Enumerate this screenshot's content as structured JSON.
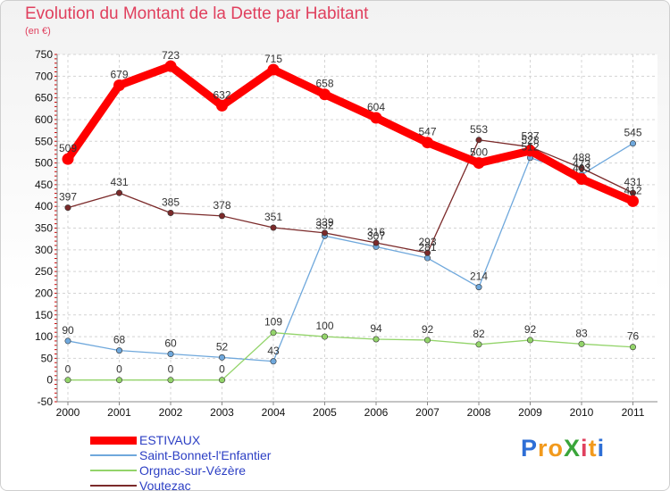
{
  "chart_data": {
    "type": "line",
    "title": "Evolution du Montant de la Dette par Habitant",
    "subtitle": "(en €)",
    "xlabel": "",
    "ylabel": "",
    "x": [
      "2000",
      "2001",
      "2002",
      "2003",
      "2004",
      "2005",
      "2006",
      "2007",
      "2008",
      "2009",
      "2010",
      "2011"
    ],
    "ylim": [
      -50,
      750
    ],
    "yticks": [
      -50,
      0,
      50,
      100,
      150,
      200,
      250,
      300,
      350,
      400,
      450,
      500,
      550,
      600,
      650,
      700,
      750
    ],
    "grid": true,
    "legend_position": "bottom-left",
    "series": [
      {
        "name": "ESTIVAUX",
        "color": "#ff0000",
        "values": [
          509,
          679,
          723,
          632,
          715,
          658,
          604,
          547,
          500,
          528,
          463,
          412
        ],
        "labels": [
          "509",
          "679",
          "723",
          "632",
          "715",
          "658",
          "604",
          "547",
          "500",
          "528",
          "463",
          "412"
        ]
      },
      {
        "name": "Saint-Bonnet-l'Enfantier",
        "color": "#6fa8dc",
        "values": [
          90,
          68,
          60,
          52,
          43,
          332,
          307,
          281,
          214,
          512,
          473,
          545
        ],
        "labels": [
          "90",
          "68",
          "60",
          "52",
          "43",
          "332",
          "307",
          "281",
          "214",
          "512",
          "473",
          "545"
        ]
      },
      {
        "name": "Orgnac-sur-Vézère",
        "color": "#93d46a",
        "values": [
          0,
          0,
          0,
          0,
          109,
          100,
          94,
          92,
          82,
          92,
          83,
          76
        ],
        "labels": [
          "0",
          "0",
          "0",
          "0",
          "109",
          "100",
          "94",
          "92",
          "82",
          "92",
          "83",
          "76"
        ]
      },
      {
        "name": "Voutezac",
        "color": "#7b2a2a",
        "values": [
          397,
          431,
          385,
          378,
          351,
          339,
          316,
          293,
          553,
          537,
          488,
          431
        ],
        "labels": [
          "397",
          "431",
          "385",
          "378",
          "351",
          "339",
          "316",
          "293",
          "553",
          "537",
          "488",
          "431"
        ]
      }
    ]
  },
  "brand": {
    "text": "ProXiti",
    "letters": [
      "P",
      "r",
      "o",
      "X",
      "i",
      "t",
      "i"
    ],
    "colors": [
      "#2e6fd6",
      "#f29a1d",
      "#f29a1d",
      "#3aa53a",
      "#e0405e",
      "#f29a1d",
      "#2e6fd6"
    ]
  }
}
